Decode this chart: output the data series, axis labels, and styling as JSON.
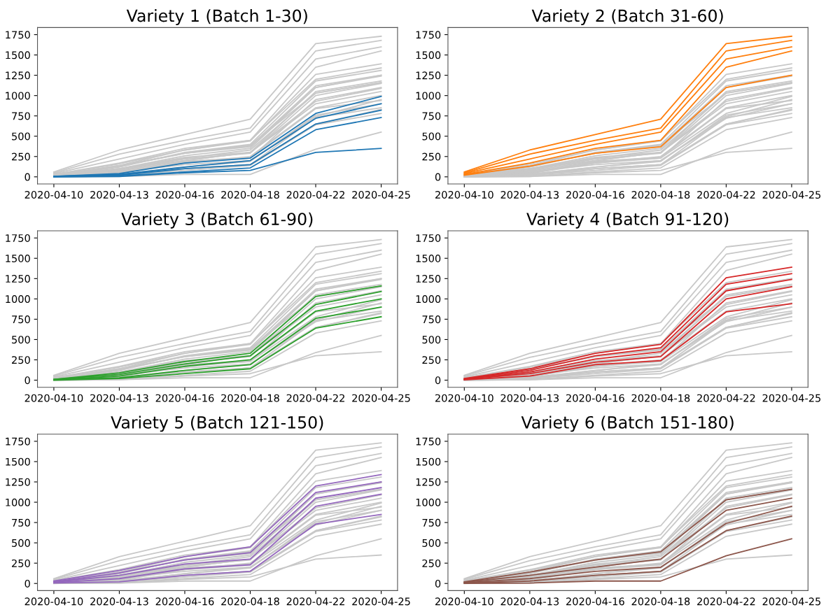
{
  "chart_data": [
    {
      "type": "line",
      "title": "Variety 1 (Batch 1-30)",
      "categories": [
        "2020-04-10",
        "2020-04-13",
        "2020-04-16",
        "2020-04-18",
        "2020-04-22",
        "2020-04-25"
      ],
      "ylim": [
        -87.5,
        1837.5
      ],
      "yticks": [
        0,
        250,
        500,
        750,
        1000,
        1250,
        1500,
        1750
      ],
      "grid": false,
      "series": [
        {
          "color": "#c8c8c8",
          "values": [
            60,
            330,
            520,
            710,
            1640,
            1730
          ]
        },
        {
          "color": "#c8c8c8",
          "values": [
            50,
            280,
            450,
            600,
            1550,
            1680
          ]
        },
        {
          "color": "#c8c8c8",
          "values": [
            40,
            220,
            400,
            550,
            1450,
            1600
          ]
        },
        {
          "color": "#c8c8c8",
          "values": [
            30,
            170,
            350,
            450,
            1350,
            1550
          ]
        },
        {
          "color": "#c8c8c8",
          "values": [
            20,
            130,
            290,
            370,
            1100,
            1250
          ]
        },
        {
          "color": "#c8c8c8",
          "values": [
            10,
            90,
            230,
            330,
            1030,
            1160
          ]
        },
        {
          "color": "#c8c8c8",
          "values": [
            10,
            70,
            200,
            300,
            930,
            1090
          ]
        },
        {
          "color": "#c8c8c8",
          "values": [
            5,
            50,
            170,
            250,
            850,
            1000
          ]
        },
        {
          "color": "#c8c8c8",
          "values": [
            5,
            30,
            120,
            190,
            760,
            900
          ]
        },
        {
          "color": "#c8c8c8",
          "values": [
            0,
            20,
            80,
            140,
            640,
            780
          ]
        },
        {
          "color": "#c8c8c8",
          "values": [
            20,
            140,
            330,
            440,
            1260,
            1390
          ]
        },
        {
          "color": "#c8c8c8",
          "values": [
            15,
            120,
            300,
            400,
            1180,
            1310
          ]
        },
        {
          "color": "#c8c8c8",
          "values": [
            10,
            100,
            260,
            350,
            1100,
            1240
          ]
        },
        {
          "color": "#c8c8c8",
          "values": [
            10,
            80,
            220,
            290,
            1000,
            1150
          ]
        },
        {
          "color": "#c8c8c8",
          "values": [
            5,
            50,
            190,
            240,
            840,
            940
          ]
        },
        {
          "color": "#c8c8c8",
          "values": [
            30,
            160,
            330,
            450,
            1200,
            1340
          ]
        },
        {
          "color": "#c8c8c8",
          "values": [
            20,
            130,
            290,
            380,
            1120,
            1250
          ]
        },
        {
          "color": "#c8c8c8",
          "values": [
            15,
            100,
            240,
            300,
            1050,
            1180
          ]
        },
        {
          "color": "#c8c8c8",
          "values": [
            10,
            60,
            180,
            230,
            950,
            1100
          ]
        },
        {
          "color": "#c8c8c8",
          "values": [
            5,
            20,
            100,
            150,
            730,
            850
          ]
        },
        {
          "color": "#c8c8c8",
          "values": [
            20,
            140,
            290,
            390,
            1030,
            1160
          ]
        },
        {
          "color": "#c8c8c8",
          "values": [
            15,
            100,
            200,
            300,
            900,
            1050
          ]
        },
        {
          "color": "#c8c8c8",
          "values": [
            10,
            60,
            150,
            200,
            740,
            950
          ]
        },
        {
          "color": "#c8c8c8",
          "values": [
            5,
            30,
            100,
            150,
            650,
            830
          ]
        },
        {
          "color": "#c8c8c8",
          "values": [
            0,
            5,
            30,
            30,
            340,
            550
          ]
        },
        {
          "color": "#1f77b4",
          "values": [
            5,
            40,
            170,
            230,
            780,
            990
          ]
        },
        {
          "color": "#1f77b4",
          "values": [
            5,
            30,
            120,
            200,
            720,
            900
          ]
        },
        {
          "color": "#1f77b4",
          "values": [
            5,
            20,
            100,
            150,
            650,
            820
          ]
        },
        {
          "color": "#1f77b4",
          "values": [
            0,
            10,
            60,
            110,
            580,
            730
          ]
        },
        {
          "color": "#1f77b4",
          "values": [
            0,
            5,
            50,
            80,
            300,
            350
          ]
        }
      ]
    },
    {
      "type": "line",
      "title": "Variety 2 (Batch 31-60)",
      "categories": [
        "2020-04-10",
        "2020-04-13",
        "2020-04-16",
        "2020-04-18",
        "2020-04-22",
        "2020-04-25"
      ],
      "ylim": [
        -87.5,
        1837.5
      ],
      "yticks": [
        0,
        250,
        500,
        750,
        1000,
        1250,
        1500,
        1750
      ],
      "grid": false,
      "series": [
        {
          "color": "#c8c8c8",
          "values": [
            5,
            40,
            170,
            230,
            780,
            990
          ]
        },
        {
          "color": "#c8c8c8",
          "values": [
            5,
            30,
            120,
            200,
            720,
            900
          ]
        },
        {
          "color": "#c8c8c8",
          "values": [
            5,
            20,
            100,
            150,
            650,
            820
          ]
        },
        {
          "color": "#c8c8c8",
          "values": [
            0,
            10,
            60,
            110,
            580,
            730
          ]
        },
        {
          "color": "#c8c8c8",
          "values": [
            0,
            5,
            50,
            80,
            300,
            350
          ]
        },
        {
          "color": "#c8c8c8",
          "values": [
            10,
            90,
            230,
            330,
            1030,
            1160
          ]
        },
        {
          "color": "#c8c8c8",
          "values": [
            10,
            70,
            200,
            300,
            930,
            1090
          ]
        },
        {
          "color": "#c8c8c8",
          "values": [
            5,
            50,
            170,
            250,
            850,
            1000
          ]
        },
        {
          "color": "#c8c8c8",
          "values": [
            5,
            30,
            120,
            190,
            760,
            900
          ]
        },
        {
          "color": "#c8c8c8",
          "values": [
            0,
            20,
            80,
            140,
            640,
            780
          ]
        },
        {
          "color": "#c8c8c8",
          "values": [
            20,
            140,
            330,
            440,
            1260,
            1390
          ]
        },
        {
          "color": "#c8c8c8",
          "values": [
            15,
            120,
            300,
            400,
            1180,
            1310
          ]
        },
        {
          "color": "#c8c8c8",
          "values": [
            10,
            100,
            260,
            350,
            1100,
            1240
          ]
        },
        {
          "color": "#c8c8c8",
          "values": [
            10,
            80,
            220,
            290,
            1000,
            1150
          ]
        },
        {
          "color": "#c8c8c8",
          "values": [
            5,
            50,
            190,
            240,
            840,
            940
          ]
        },
        {
          "color": "#c8c8c8",
          "values": [
            30,
            160,
            330,
            450,
            1200,
            1340
          ]
        },
        {
          "color": "#c8c8c8",
          "values": [
            20,
            130,
            290,
            380,
            1120,
            1250
          ]
        },
        {
          "color": "#c8c8c8",
          "values": [
            15,
            100,
            240,
            300,
            1050,
            1180
          ]
        },
        {
          "color": "#c8c8c8",
          "values": [
            10,
            60,
            180,
            230,
            950,
            1100
          ]
        },
        {
          "color": "#c8c8c8",
          "values": [
            5,
            20,
            100,
            150,
            730,
            850
          ]
        },
        {
          "color": "#c8c8c8",
          "values": [
            20,
            140,
            290,
            390,
            1030,
            1160
          ]
        },
        {
          "color": "#c8c8c8",
          "values": [
            15,
            100,
            200,
            300,
            900,
            1050
          ]
        },
        {
          "color": "#c8c8c8",
          "values": [
            10,
            60,
            150,
            200,
            740,
            950
          ]
        },
        {
          "color": "#c8c8c8",
          "values": [
            5,
            30,
            100,
            150,
            650,
            830
          ]
        },
        {
          "color": "#c8c8c8",
          "values": [
            0,
            5,
            30,
            30,
            340,
            550
          ]
        },
        {
          "color": "#ff7f0e",
          "values": [
            60,
            330,
            520,
            710,
            1640,
            1730
          ]
        },
        {
          "color": "#ff7f0e",
          "values": [
            50,
            280,
            450,
            600,
            1550,
            1680
          ]
        },
        {
          "color": "#ff7f0e",
          "values": [
            40,
            220,
            400,
            550,
            1450,
            1600
          ]
        },
        {
          "color": "#ff7f0e",
          "values": [
            30,
            170,
            350,
            450,
            1350,
            1550
          ]
        },
        {
          "color": "#ff7f0e",
          "values": [
            20,
            130,
            290,
            370,
            1100,
            1250
          ]
        }
      ]
    },
    {
      "type": "line",
      "title": "Variety 3 (Batch 61-90)",
      "categories": [
        "2020-04-10",
        "2020-04-13",
        "2020-04-16",
        "2020-04-18",
        "2020-04-22",
        "2020-04-25"
      ],
      "ylim": [
        -87.5,
        1837.5
      ],
      "yticks": [
        0,
        250,
        500,
        750,
        1000,
        1250,
        1500,
        1750
      ],
      "grid": false,
      "series": [
        {
          "color": "#c8c8c8",
          "values": [
            5,
            40,
            170,
            230,
            780,
            990
          ]
        },
        {
          "color": "#c8c8c8",
          "values": [
            5,
            30,
            120,
            200,
            720,
            900
          ]
        },
        {
          "color": "#c8c8c8",
          "values": [
            5,
            20,
            100,
            150,
            650,
            820
          ]
        },
        {
          "color": "#c8c8c8",
          "values": [
            0,
            10,
            60,
            110,
            580,
            730
          ]
        },
        {
          "color": "#c8c8c8",
          "values": [
            0,
            5,
            50,
            80,
            300,
            350
          ]
        },
        {
          "color": "#c8c8c8",
          "values": [
            60,
            330,
            520,
            710,
            1640,
            1730
          ]
        },
        {
          "color": "#c8c8c8",
          "values": [
            50,
            280,
            450,
            600,
            1550,
            1680
          ]
        },
        {
          "color": "#c8c8c8",
          "values": [
            40,
            220,
            400,
            550,
            1450,
            1600
          ]
        },
        {
          "color": "#c8c8c8",
          "values": [
            30,
            170,
            350,
            450,
            1350,
            1550
          ]
        },
        {
          "color": "#c8c8c8",
          "values": [
            20,
            130,
            290,
            370,
            1100,
            1250
          ]
        },
        {
          "color": "#c8c8c8",
          "values": [
            20,
            140,
            330,
            440,
            1260,
            1390
          ]
        },
        {
          "color": "#c8c8c8",
          "values": [
            15,
            120,
            300,
            400,
            1180,
            1310
          ]
        },
        {
          "color": "#c8c8c8",
          "values": [
            10,
            100,
            260,
            350,
            1100,
            1240
          ]
        },
        {
          "color": "#c8c8c8",
          "values": [
            10,
            80,
            220,
            290,
            1000,
            1150
          ]
        },
        {
          "color": "#c8c8c8",
          "values": [
            5,
            50,
            190,
            240,
            840,
            940
          ]
        },
        {
          "color": "#c8c8c8",
          "values": [
            30,
            160,
            330,
            450,
            1200,
            1340
          ]
        },
        {
          "color": "#c8c8c8",
          "values": [
            20,
            130,
            290,
            380,
            1120,
            1250
          ]
        },
        {
          "color": "#c8c8c8",
          "values": [
            15,
            100,
            240,
            300,
            1050,
            1180
          ]
        },
        {
          "color": "#c8c8c8",
          "values": [
            10,
            60,
            180,
            230,
            950,
            1100
          ]
        },
        {
          "color": "#c8c8c8",
          "values": [
            5,
            20,
            100,
            150,
            730,
            850
          ]
        },
        {
          "color": "#c8c8c8",
          "values": [
            20,
            140,
            290,
            390,
            1030,
            1160
          ]
        },
        {
          "color": "#c8c8c8",
          "values": [
            15,
            100,
            200,
            300,
            900,
            1050
          ]
        },
        {
          "color": "#c8c8c8",
          "values": [
            10,
            60,
            150,
            200,
            740,
            950
          ]
        },
        {
          "color": "#c8c8c8",
          "values": [
            5,
            30,
            100,
            150,
            650,
            830
          ]
        },
        {
          "color": "#c8c8c8",
          "values": [
            0,
            5,
            30,
            30,
            340,
            550
          ]
        },
        {
          "color": "#2ca02c",
          "values": [
            10,
            90,
            230,
            330,
            1030,
            1160
          ]
        },
        {
          "color": "#2ca02c",
          "values": [
            10,
            70,
            200,
            300,
            930,
            1090
          ]
        },
        {
          "color": "#2ca02c",
          "values": [
            5,
            50,
            170,
            250,
            850,
            1000
          ]
        },
        {
          "color": "#2ca02c",
          "values": [
            5,
            30,
            120,
            190,
            760,
            900
          ]
        },
        {
          "color": "#2ca02c",
          "values": [
            0,
            20,
            80,
            140,
            640,
            780
          ]
        }
      ]
    },
    {
      "type": "line",
      "title": "Variety 4 (Batch 91-120)",
      "categories": [
        "2020-04-10",
        "2020-04-13",
        "2020-04-16",
        "2020-04-18",
        "2020-04-22",
        "2020-04-25"
      ],
      "ylim": [
        -87.5,
        1837.5
      ],
      "yticks": [
        0,
        250,
        500,
        750,
        1000,
        1250,
        1500,
        1750
      ],
      "grid": false,
      "series": [
        {
          "color": "#c8c8c8",
          "values": [
            5,
            40,
            170,
            230,
            780,
            990
          ]
        },
        {
          "color": "#c8c8c8",
          "values": [
            5,
            30,
            120,
            200,
            720,
            900
          ]
        },
        {
          "color": "#c8c8c8",
          "values": [
            5,
            20,
            100,
            150,
            650,
            820
          ]
        },
        {
          "color": "#c8c8c8",
          "values": [
            0,
            10,
            60,
            110,
            580,
            730
          ]
        },
        {
          "color": "#c8c8c8",
          "values": [
            0,
            5,
            50,
            80,
            300,
            350
          ]
        },
        {
          "color": "#c8c8c8",
          "values": [
            60,
            330,
            520,
            710,
            1640,
            1730
          ]
        },
        {
          "color": "#c8c8c8",
          "values": [
            50,
            280,
            450,
            600,
            1550,
            1680
          ]
        },
        {
          "color": "#c8c8c8",
          "values": [
            40,
            220,
            400,
            550,
            1450,
            1600
          ]
        },
        {
          "color": "#c8c8c8",
          "values": [
            30,
            170,
            350,
            450,
            1350,
            1550
          ]
        },
        {
          "color": "#c8c8c8",
          "values": [
            20,
            130,
            290,
            370,
            1100,
            1250
          ]
        },
        {
          "color": "#c8c8c8",
          "values": [
            10,
            90,
            230,
            330,
            1030,
            1160
          ]
        },
        {
          "color": "#c8c8c8",
          "values": [
            10,
            70,
            200,
            300,
            930,
            1090
          ]
        },
        {
          "color": "#c8c8c8",
          "values": [
            5,
            50,
            170,
            250,
            850,
            1000
          ]
        },
        {
          "color": "#c8c8c8",
          "values": [
            5,
            30,
            120,
            190,
            760,
            900
          ]
        },
        {
          "color": "#c8c8c8",
          "values": [
            0,
            20,
            80,
            140,
            640,
            780
          ]
        },
        {
          "color": "#c8c8c8",
          "values": [
            30,
            160,
            330,
            450,
            1200,
            1340
          ]
        },
        {
          "color": "#c8c8c8",
          "values": [
            20,
            130,
            290,
            380,
            1120,
            1250
          ]
        },
        {
          "color": "#c8c8c8",
          "values": [
            15,
            100,
            240,
            300,
            1050,
            1180
          ]
        },
        {
          "color": "#c8c8c8",
          "values": [
            10,
            60,
            180,
            230,
            950,
            1100
          ]
        },
        {
          "color": "#c8c8c8",
          "values": [
            5,
            20,
            100,
            150,
            730,
            850
          ]
        },
        {
          "color": "#c8c8c8",
          "values": [
            20,
            140,
            290,
            390,
            1030,
            1160
          ]
        },
        {
          "color": "#c8c8c8",
          "values": [
            15,
            100,
            200,
            300,
            900,
            1050
          ]
        },
        {
          "color": "#c8c8c8",
          "values": [
            10,
            60,
            150,
            200,
            740,
            950
          ]
        },
        {
          "color": "#c8c8c8",
          "values": [
            5,
            30,
            100,
            150,
            650,
            830
          ]
        },
        {
          "color": "#c8c8c8",
          "values": [
            0,
            5,
            30,
            30,
            340,
            550
          ]
        },
        {
          "color": "#d62728",
          "values": [
            20,
            140,
            330,
            440,
            1260,
            1390
          ]
        },
        {
          "color": "#d62728",
          "values": [
            15,
            120,
            300,
            400,
            1180,
            1310
          ]
        },
        {
          "color": "#d62728",
          "values": [
            10,
            100,
            260,
            350,
            1100,
            1240
          ]
        },
        {
          "color": "#d62728",
          "values": [
            10,
            80,
            220,
            290,
            1000,
            1150
          ]
        },
        {
          "color": "#d62728",
          "values": [
            5,
            50,
            190,
            240,
            840,
            940
          ]
        }
      ]
    },
    {
      "type": "line",
      "title": "Variety 5 (Batch 121-150)",
      "categories": [
        "2020-04-10",
        "2020-04-13",
        "2020-04-16",
        "2020-04-18",
        "2020-04-22",
        "2020-04-25"
      ],
      "ylim": [
        -87.5,
        1837.5
      ],
      "yticks": [
        0,
        250,
        500,
        750,
        1000,
        1250,
        1500,
        1750
      ],
      "grid": false,
      "series": [
        {
          "color": "#c8c8c8",
          "values": [
            5,
            40,
            170,
            230,
            780,
            990
          ]
        },
        {
          "color": "#c8c8c8",
          "values": [
            5,
            30,
            120,
            200,
            720,
            900
          ]
        },
        {
          "color": "#c8c8c8",
          "values": [
            5,
            20,
            100,
            150,
            650,
            820
          ]
        },
        {
          "color": "#c8c8c8",
          "values": [
            0,
            10,
            60,
            110,
            580,
            730
          ]
        },
        {
          "color": "#c8c8c8",
          "values": [
            0,
            5,
            50,
            80,
            300,
            350
          ]
        },
        {
          "color": "#c8c8c8",
          "values": [
            60,
            330,
            520,
            710,
            1640,
            1730
          ]
        },
        {
          "color": "#c8c8c8",
          "values": [
            50,
            280,
            450,
            600,
            1550,
            1680
          ]
        },
        {
          "color": "#c8c8c8",
          "values": [
            40,
            220,
            400,
            550,
            1450,
            1600
          ]
        },
        {
          "color": "#c8c8c8",
          "values": [
            30,
            170,
            350,
            450,
            1350,
            1550
          ]
        },
        {
          "color": "#c8c8c8",
          "values": [
            20,
            130,
            290,
            370,
            1100,
            1250
          ]
        },
        {
          "color": "#c8c8c8",
          "values": [
            10,
            90,
            230,
            330,
            1030,
            1160
          ]
        },
        {
          "color": "#c8c8c8",
          "values": [
            10,
            70,
            200,
            300,
            930,
            1090
          ]
        },
        {
          "color": "#c8c8c8",
          "values": [
            5,
            50,
            170,
            250,
            850,
            1000
          ]
        },
        {
          "color": "#c8c8c8",
          "values": [
            5,
            30,
            120,
            190,
            760,
            900
          ]
        },
        {
          "color": "#c8c8c8",
          "values": [
            0,
            20,
            80,
            140,
            640,
            780
          ]
        },
        {
          "color": "#c8c8c8",
          "values": [
            20,
            140,
            330,
            440,
            1260,
            1390
          ]
        },
        {
          "color": "#c8c8c8",
          "values": [
            15,
            120,
            300,
            400,
            1180,
            1310
          ]
        },
        {
          "color": "#c8c8c8",
          "values": [
            10,
            100,
            260,
            350,
            1100,
            1240
          ]
        },
        {
          "color": "#c8c8c8",
          "values": [
            10,
            80,
            220,
            290,
            1000,
            1150
          ]
        },
        {
          "color": "#c8c8c8",
          "values": [
            5,
            50,
            190,
            240,
            840,
            940
          ]
        },
        {
          "color": "#c8c8c8",
          "values": [
            20,
            140,
            290,
            390,
            1030,
            1160
          ]
        },
        {
          "color": "#c8c8c8",
          "values": [
            15,
            100,
            200,
            300,
            900,
            1050
          ]
        },
        {
          "color": "#c8c8c8",
          "values": [
            10,
            60,
            150,
            200,
            740,
            950
          ]
        },
        {
          "color": "#c8c8c8",
          "values": [
            5,
            30,
            100,
            150,
            650,
            830
          ]
        },
        {
          "color": "#c8c8c8",
          "values": [
            0,
            5,
            30,
            30,
            340,
            550
          ]
        },
        {
          "color": "#9467bd",
          "values": [
            30,
            160,
            330,
            450,
            1200,
            1340
          ]
        },
        {
          "color": "#9467bd",
          "values": [
            20,
            130,
            290,
            380,
            1120,
            1250
          ]
        },
        {
          "color": "#9467bd",
          "values": [
            15,
            100,
            240,
            300,
            1050,
            1180
          ]
        },
        {
          "color": "#9467bd",
          "values": [
            10,
            60,
            180,
            230,
            950,
            1100
          ]
        },
        {
          "color": "#9467bd",
          "values": [
            5,
            20,
            100,
            150,
            730,
            850
          ]
        }
      ]
    },
    {
      "type": "line",
      "title": "Variety 6 (Batch 151-180)",
      "categories": [
        "2020-04-10",
        "2020-04-13",
        "2020-04-16",
        "2020-04-18",
        "2020-04-22",
        "2020-04-25"
      ],
      "ylim": [
        -87.5,
        1837.5
      ],
      "yticks": [
        0,
        250,
        500,
        750,
        1000,
        1250,
        1500,
        1750
      ],
      "grid": false,
      "series": [
        {
          "color": "#c8c8c8",
          "values": [
            5,
            40,
            170,
            230,
            780,
            990
          ]
        },
        {
          "color": "#c8c8c8",
          "values": [
            5,
            30,
            120,
            200,
            720,
            900
          ]
        },
        {
          "color": "#c8c8c8",
          "values": [
            5,
            20,
            100,
            150,
            650,
            820
          ]
        },
        {
          "color": "#c8c8c8",
          "values": [
            0,
            10,
            60,
            110,
            580,
            730
          ]
        },
        {
          "color": "#c8c8c8",
          "values": [
            0,
            5,
            50,
            80,
            300,
            350
          ]
        },
        {
          "color": "#c8c8c8",
          "values": [
            60,
            330,
            520,
            710,
            1640,
            1730
          ]
        },
        {
          "color": "#c8c8c8",
          "values": [
            50,
            280,
            450,
            600,
            1550,
            1680
          ]
        },
        {
          "color": "#c8c8c8",
          "values": [
            40,
            220,
            400,
            550,
            1450,
            1600
          ]
        },
        {
          "color": "#c8c8c8",
          "values": [
            30,
            170,
            350,
            450,
            1350,
            1550
          ]
        },
        {
          "color": "#c8c8c8",
          "values": [
            20,
            130,
            290,
            370,
            1100,
            1250
          ]
        },
        {
          "color": "#c8c8c8",
          "values": [
            10,
            90,
            230,
            330,
            1030,
            1160
          ]
        },
        {
          "color": "#c8c8c8",
          "values": [
            10,
            70,
            200,
            300,
            930,
            1090
          ]
        },
        {
          "color": "#c8c8c8",
          "values": [
            5,
            50,
            170,
            250,
            850,
            1000
          ]
        },
        {
          "color": "#c8c8c8",
          "values": [
            5,
            30,
            120,
            190,
            760,
            900
          ]
        },
        {
          "color": "#c8c8c8",
          "values": [
            0,
            20,
            80,
            140,
            640,
            780
          ]
        },
        {
          "color": "#c8c8c8",
          "values": [
            20,
            140,
            330,
            440,
            1260,
            1390
          ]
        },
        {
          "color": "#c8c8c8",
          "values": [
            15,
            120,
            300,
            400,
            1180,
            1310
          ]
        },
        {
          "color": "#c8c8c8",
          "values": [
            10,
            100,
            260,
            350,
            1100,
            1240
          ]
        },
        {
          "color": "#c8c8c8",
          "values": [
            10,
            80,
            220,
            290,
            1000,
            1150
          ]
        },
        {
          "color": "#c8c8c8",
          "values": [
            5,
            50,
            190,
            240,
            840,
            940
          ]
        },
        {
          "color": "#c8c8c8",
          "values": [
            30,
            160,
            330,
            450,
            1200,
            1340
          ]
        },
        {
          "color": "#c8c8c8",
          "values": [
            20,
            130,
            290,
            380,
            1120,
            1250
          ]
        },
        {
          "color": "#c8c8c8",
          "values": [
            15,
            100,
            240,
            300,
            1050,
            1180
          ]
        },
        {
          "color": "#c8c8c8",
          "values": [
            10,
            60,
            180,
            230,
            950,
            1100
          ]
        },
        {
          "color": "#c8c8c8",
          "values": [
            5,
            20,
            100,
            150,
            730,
            850
          ]
        },
        {
          "color": "#8c564b",
          "values": [
            20,
            140,
            290,
            390,
            1030,
            1160
          ]
        },
        {
          "color": "#8c564b",
          "values": [
            15,
            100,
            200,
            300,
            900,
            1050
          ]
        },
        {
          "color": "#8c564b",
          "values": [
            10,
            60,
            150,
            200,
            740,
            950
          ]
        },
        {
          "color": "#8c564b",
          "values": [
            5,
            30,
            100,
            150,
            650,
            830
          ]
        },
        {
          "color": "#8c564b",
          "values": [
            0,
            5,
            30,
            30,
            340,
            550
          ]
        }
      ]
    }
  ]
}
